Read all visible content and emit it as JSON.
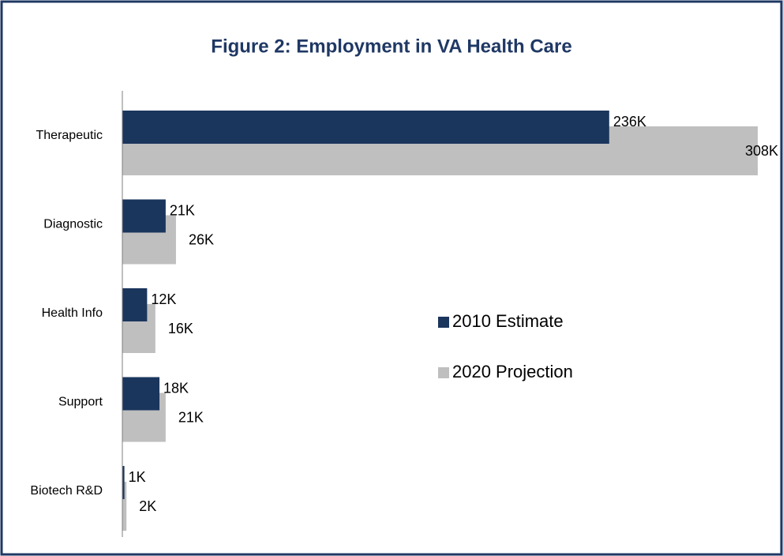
{
  "chart_data": {
    "type": "bar",
    "orientation": "horizontal",
    "title": "Figure 2:  Employment in VA Health Care",
    "categories": [
      "Therapeutic",
      "Diagnostic",
      "Health Info",
      "Support",
      "Biotech R&D"
    ],
    "series": [
      {
        "name": "2010 Estimate",
        "color": "#1b365d",
        "values": [
          236000,
          21000,
          12000,
          18000,
          1000
        ],
        "value_labels": [
          "236K",
          "21K",
          "12K",
          "18K",
          "1K"
        ]
      },
      {
        "name": "2020 Projection",
        "color": "#bfbfbf",
        "values": [
          308000,
          26000,
          16000,
          21000,
          2000
        ],
        "value_labels": [
          "308K",
          "26K",
          "16K",
          "21K",
          "2K"
        ]
      }
    ],
    "legend": "right"
  }
}
